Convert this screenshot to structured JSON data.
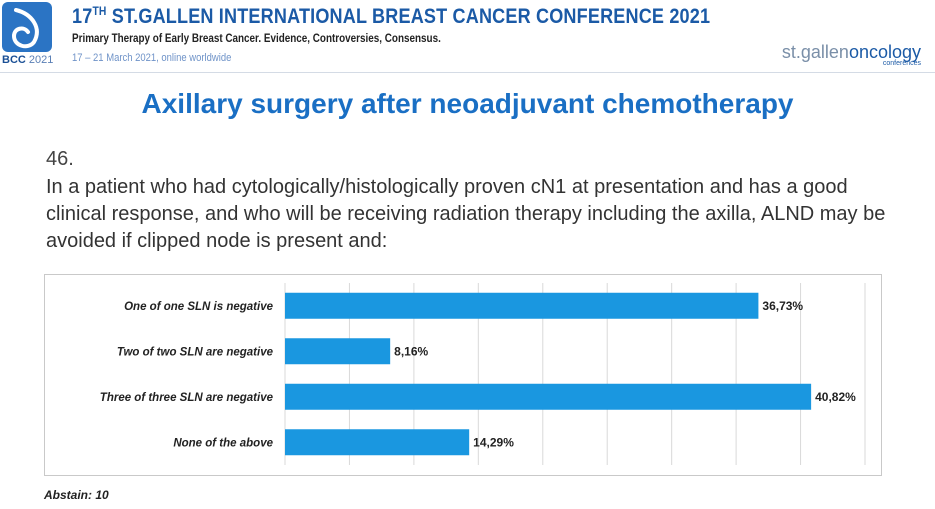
{
  "conference": {
    "title_prefix": "17",
    "title_sup": "TH",
    "title_rest": " ST.GALLEN INTERNATIONAL BREAST CANCER CONFERENCE 2021",
    "subtitle": "Primary Therapy of Early Breast Cancer. Evidence, Controversies, Consensus.",
    "dates": "17 – 21 March 2021, online worldwide",
    "logo_label": "BCC",
    "logo_year": "2021",
    "brand_part1": "st.gallen",
    "brand_part2": "oncology",
    "brand_sub": "conferences"
  },
  "slide": {
    "title": "Axillary surgery after neoadjuvant chemotherapy",
    "question_number": "46.",
    "question_text": "In a patient who had cytologically/histologically proven cN1 at presentation and has a good clinical response, and who will be receiving radiation therapy including the axilla, ALND may be avoided if clipped node is present and:",
    "abstain": "Abstain: 10"
  },
  "colors": {
    "bar": "#1a97e0",
    "title": "#1a6fc4",
    "grid": "#d9d9d9"
  },
  "chart_data": {
    "type": "bar",
    "orientation": "horizontal",
    "title": "",
    "xlabel": "",
    "ylabel": "",
    "categories": [
      "One of one SLN is negative",
      "Two of two SLN are negative",
      "Three of three SLN are negative",
      "None of the above"
    ],
    "values": [
      36.73,
      8.16,
      40.82,
      14.29
    ],
    "value_labels": [
      "36,73%",
      "8,16%",
      "40,82%",
      "14,29%"
    ],
    "xlim": [
      0,
      45
    ],
    "grid": true
  }
}
